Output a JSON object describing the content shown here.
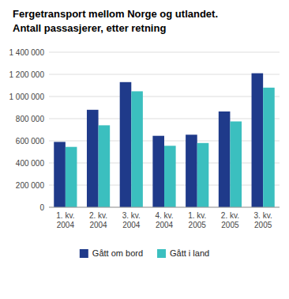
{
  "chart_data": {
    "type": "bar",
    "title": "Fergetransport mellom Norge og utlandet.",
    "subtitle": "Antall passasjerer, etter retning",
    "categories": [
      "1. kv.\n2004",
      "2. kv.\n2004",
      "3. kv.\n2004",
      "4. kv.\n2004",
      "1. kv.\n2005",
      "2. kv.\n2005",
      "3. kv.\n2005"
    ],
    "series": [
      {
        "name": "Gått om bord",
        "color": "#1f3a8a",
        "values": [
          590000,
          880000,
          1130000,
          645000,
          655000,
          865000,
          1210000
        ]
      },
      {
        "name": "Gått i land",
        "color": "#3bbfbf",
        "values": [
          545000,
          740000,
          1047000,
          555000,
          580000,
          775000,
          1080000
        ]
      }
    ],
    "ylim": [
      0,
      1400000
    ],
    "yticks": [
      0,
      {
        "value": 200000,
        "label": "200 000"
      },
      {
        "value": 400000,
        "label": "400 000"
      },
      {
        "value": 600000,
        "label": "600 000"
      },
      {
        "value": 800000,
        "label": "800 000"
      },
      {
        "value": 1000000,
        "label": "1 000 000"
      },
      {
        "value": 1200000,
        "label": "1 200 000"
      },
      {
        "value": 1400000,
        "label": "1 400 000"
      }
    ],
    "grid": true,
    "legend": "bottom"
  }
}
